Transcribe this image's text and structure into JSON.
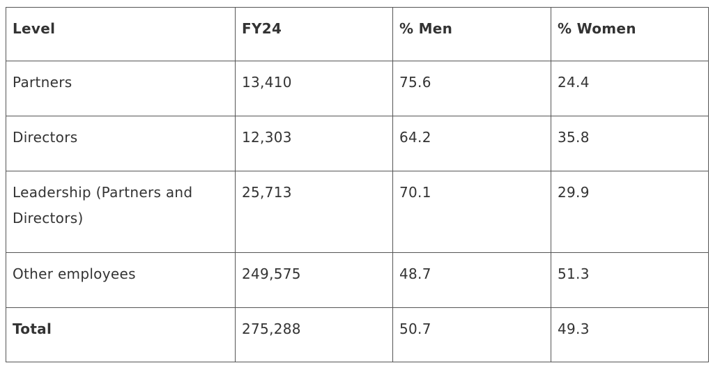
{
  "table": {
    "header": [
      "Level",
      "FY24",
      "% Men",
      "% Women"
    ],
    "rows": [
      [
        "Partners",
        "13,410",
        "75.6",
        "24.4"
      ],
      [
        "Directors",
        "12,303",
        "64.2",
        "35.8"
      ],
      [
        "Leadership (Partners and Directors)",
        "25,713",
        "70.1",
        "29.9"
      ],
      [
        "Other employees",
        "249,575",
        "48.7",
        "51.3"
      ],
      [
        "Total",
        "275,288",
        "50.7",
        "49.3"
      ]
    ]
  }
}
